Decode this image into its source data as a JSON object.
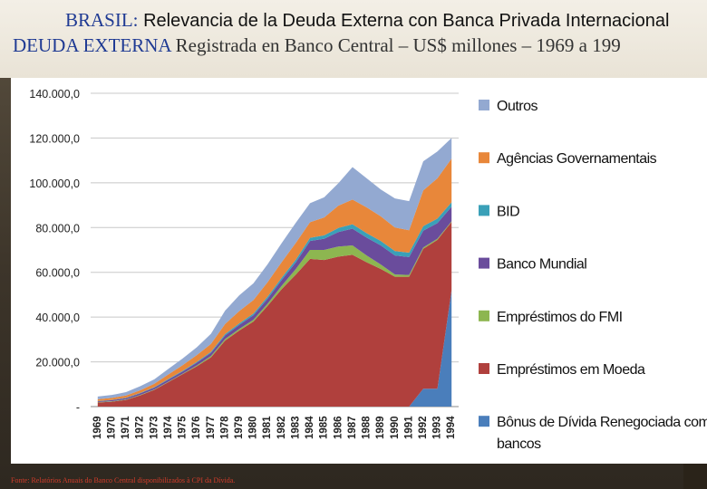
{
  "header": {
    "line1_country": "BRASIL:",
    "line1_text": "Relevancia de la Deuda Externa con Banca Privada Internacional",
    "line2_lead": "DEUDA EXTERNA",
    "line2_text": "Registrada en Banco Central – US$ millones – 1969 a 199"
  },
  "footer": {
    "source": "Fonte: Relatórios Anuais do Banco Central disponibilizados à CPI da Dívida."
  },
  "chart_data": {
    "type": "area",
    "stacked": true,
    "years": [
      "1969",
      "1970",
      "1971",
      "1972",
      "1973",
      "1974",
      "1975",
      "1976",
      "1977",
      "1978",
      "1979",
      "1980",
      "1981",
      "1982",
      "1983",
      "1984",
      "1985",
      "1986",
      "1987",
      "1988",
      "1989",
      "1990",
      "1991",
      "1992",
      "1993",
      "1994"
    ],
    "ylim": [
      0,
      140000
    ],
    "ytick_values": [
      0,
      20000,
      40000,
      60000,
      80000,
      100000,
      120000,
      140000
    ],
    "ytick_labels": [
      "-",
      "20.000,0",
      "40.000,0",
      "60.000,0",
      "80.000,0",
      "100.000,0",
      "120.000,0",
      "140.000,0"
    ],
    "series": [
      {
        "name": "Bônus de Dívida Renegociada com bancos",
        "color": "#4a7ebb",
        "values": [
          0,
          0,
          0,
          0,
          0,
          0,
          0,
          0,
          0,
          0,
          0,
          0,
          0,
          0,
          0,
          0,
          0,
          0,
          0,
          0,
          0,
          0,
          0,
          8000,
          8000,
          52000
        ]
      },
      {
        "name": "Empréstimos em Moeda",
        "color": "#b0403d",
        "values": [
          1800,
          2200,
          3000,
          5000,
          7500,
          11000,
          14500,
          18000,
          22000,
          29500,
          34000,
          38000,
          45000,
          52500,
          59000,
          66000,
          65500,
          67000,
          67800,
          64500,
          61500,
          58000,
          58000,
          62500,
          66500,
          30500
        ]
      },
      {
        "name": "Empréstimos do FMI",
        "color": "#8db650",
        "values": [
          200,
          200,
          200,
          200,
          200,
          200,
          200,
          400,
          600,
          700,
          700,
          800,
          1000,
          1500,
          2500,
          4000,
          4500,
          4500,
          4200,
          3000,
          2000,
          1000,
          800,
          600,
          500,
          300
        ]
      },
      {
        "name": "Banco Mundial",
        "color": "#6a4c9c",
        "values": [
          400,
          500,
          600,
          700,
          800,
          900,
          1000,
          1200,
          1400,
          1600,
          1800,
          2000,
          2200,
          2600,
          3000,
          4000,
          5000,
          6500,
          7500,
          8000,
          8500,
          8500,
          8000,
          7500,
          7000,
          6500
        ]
      },
      {
        "name": "BID",
        "color": "#3aa0b8",
        "values": [
          100,
          100,
          150,
          200,
          200,
          300,
          300,
          400,
          500,
          600,
          700,
          800,
          900,
          1000,
          1200,
          1400,
          1500,
          1800,
          2000,
          2000,
          2000,
          2000,
          2000,
          2000,
          2000,
          2000
        ]
      },
      {
        "name": "Agências Governamentais",
        "color": "#e8873a",
        "values": [
          800,
          900,
          1000,
          1200,
          1500,
          2000,
          2500,
          3000,
          3500,
          4500,
          5500,
          6000,
          6500,
          7000,
          7500,
          7000,
          8000,
          10000,
          11000,
          11500,
          11000,
          10500,
          10000,
          16000,
          18000,
          19500
        ]
      },
      {
        "name": "Outros",
        "color": "#93a9d1",
        "values": [
          1200,
          1300,
          1500,
          1800,
          2000,
          2500,
          3000,
          3500,
          4500,
          6000,
          7000,
          7500,
          8000,
          8500,
          9000,
          8500,
          9000,
          10000,
          14500,
          13000,
          12000,
          13000,
          13000,
          13000,
          12000,
          9200
        ]
      }
    ]
  }
}
